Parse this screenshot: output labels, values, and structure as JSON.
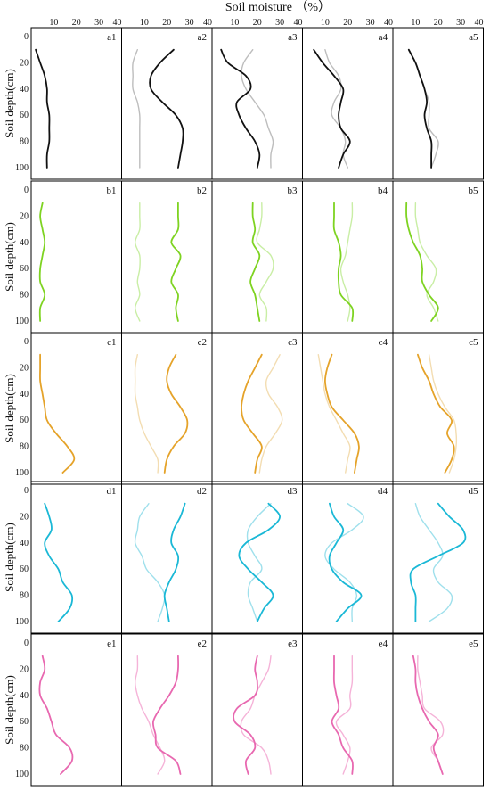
{
  "figure_title": "Soil moisture （%）",
  "y_axis_label": "Soil depth(cm)",
  "chart_data": {
    "type": "line",
    "title": "Soil moisture （%）",
    "ylabel": "Soil depth(cm)",
    "xlim": [
      0,
      40
    ],
    "ylim": [
      0,
      100
    ],
    "y_inverted": true,
    "x_ticks": [
      "10",
      "20",
      "30",
      "40"
    ],
    "y_ticks": [
      "0",
      "20",
      "40",
      "60",
      "80",
      "100"
    ],
    "depths": [
      10,
      20,
      30,
      40,
      50,
      60,
      70,
      80,
      90,
      100
    ],
    "rows": [
      {
        "color_dark": "#111111",
        "color_light": "#bdbdbd",
        "panels": [
          {
            "label": "a1",
            "dark": [
              2,
              4,
              6,
              7,
              7,
              8,
              8,
              8,
              7,
              7
            ],
            "light": null
          },
          {
            "label": "a2",
            "dark": [
              23,
              17,
              13,
              13,
              18,
              24,
              27,
              27,
              26,
              25
            ],
            "light": [
              7,
              5,
              5,
              5,
              7,
              8,
              8,
              8,
              8,
              8
            ]
          },
          {
            "label": "a3",
            "dark": [
              4,
              7,
              15,
              17,
              11,
              12,
              15,
              19,
              21,
              20
            ],
            "light": [
              18,
              14,
              13,
              15,
              19,
              23,
              25,
              27,
              26,
              26
            ]
          },
          {
            "label": "a4",
            "dark": [
              5,
              9,
              14,
              18,
              17,
              16,
              17,
              21,
              18,
              16
            ],
            "light": [
              10,
              12,
              16,
              17,
              14,
              13,
              17,
              19,
              18,
              20
            ]
          },
          {
            "label": "a5",
            "dark": [
              7,
              10,
              12,
              14,
              15,
              14,
              15,
              17,
              17,
              17
            ],
            "light": [
              7,
              10,
              12,
              14,
              16,
              16,
              16,
              20,
              19,
              17
            ]
          }
        ]
      },
      {
        "color_dark": "#7ed321",
        "color_light": "#c9eea5",
        "panels": [
          {
            "label": "b1",
            "dark": [
              5,
              4,
              5,
              6,
              5,
              4,
              4,
              6,
              4,
              4
            ],
            "light": null
          },
          {
            "label": "b2",
            "dark": [
              25,
              25,
              25,
              22,
              26,
              24,
              22,
              25,
              24,
              25
            ],
            "light": [
              8,
              8,
              8,
              6,
              8,
              8,
              7,
              8,
              6,
              8
            ]
          },
          {
            "label": "b3",
            "dark": [
              18,
              18,
              19,
              18,
              21,
              19,
              17,
              19,
              20,
              21
            ],
            "light": [
              22,
              22,
              21,
              20,
              26,
              27,
              24,
              21,
              24,
              24
            ]
          },
          {
            "label": "b4",
            "dark": [
              14,
              14,
              14,
              16,
              17,
              16,
              16,
              17,
              22,
              22
            ],
            "light": [
              22,
              22,
              21,
              20,
              19,
              17,
              18,
              20,
              21,
              20
            ]
          },
          {
            "label": "b5",
            "dark": [
              6,
              6,
              7,
              9,
              12,
              13,
              13,
              16,
              20,
              17
            ],
            "light": [
              10,
              10,
              11,
              12,
              15,
              19,
              18,
              15,
              18,
              20
            ]
          }
        ]
      },
      {
        "color_dark": "#e5a32a",
        "color_light": "#f3ddb2",
        "panels": [
          {
            "label": "c1",
            "dark": [
              4,
              4,
              4,
              5,
              6,
              7,
              11,
              16,
              19,
              14
            ],
            "light": null
          },
          {
            "label": "c2",
            "dark": [
              24,
              21,
              20,
              22,
              26,
              29,
              28,
              23,
              20,
              19
            ],
            "light": [
              7,
              6,
              6,
              6,
              7,
              8,
              10,
              13,
              16,
              16
            ]
          },
          {
            "label": "c3",
            "dark": [
              22,
              19,
              16,
              14,
              13,
              14,
              18,
              22,
              20,
              19
            ],
            "light": [
              30,
              27,
              24,
              25,
              29,
              31,
              28,
              24,
              22,
              21
            ]
          },
          {
            "label": "c4",
            "dark": [
              13,
              11,
              10,
              11,
              13,
              18,
              23,
              25,
              24,
              23
            ],
            "light": [
              7,
              8,
              9,
              10,
              12,
              15,
              18,
              21,
              20,
              19
            ]
          },
          {
            "label": "c5",
            "dark": [
              11,
              13,
              16,
              18,
              21,
              26,
              24,
              27,
              26,
              23
            ],
            "light": [
              16,
              17,
              18,
              20,
              23,
              27,
              28,
              28,
              27,
              25
            ]
          }
        ]
      },
      {
        "color_dark": "#1ab8d6",
        "color_light": "#9fe0ec",
        "panels": [
          {
            "label": "d1",
            "dark": [
              6,
              8,
              9,
              6,
              8,
              12,
              14,
              18,
              17,
              12
            ],
            "light": null
          },
          {
            "label": "d2",
            "dark": [
              28,
              26,
              23,
              22,
              25,
              24,
              21,
              19,
              20,
              21
            ],
            "light": [
              12,
              8,
              7,
              6,
              9,
              11,
              16,
              19,
              18,
              16
            ]
          },
          {
            "label": "d3",
            "dark": [
              25,
              30,
              25,
              15,
              12,
              16,
              22,
              27,
              23,
              20
            ],
            "light": [
              26,
              20,
              16,
              16,
              19,
              22,
              17,
              16,
              18,
              20
            ]
          },
          {
            "label": "d4",
            "dark": [
              12,
              14,
              18,
              15,
              12,
              13,
              18,
              26,
              20,
              15
            ],
            "light": [
              20,
              27,
              22,
              13,
              10,
              14,
              21,
              24,
              22,
              22
            ]
          },
          {
            "label": "d5",
            "dark": [
              20,
              25,
              31,
              31,
              20,
              9,
              8,
              10,
              10,
              10
            ],
            "light": [
              10,
              12,
              16,
              20,
              22,
              18,
              20,
              26,
              24,
              16
            ]
          }
        ]
      },
      {
        "color_dark": "#e868b0",
        "color_light": "#f5b3d8",
        "panels": [
          {
            "label": "e1",
            "dark": [
              5,
              6,
              4,
              4,
              7,
              9,
              11,
              17,
              18,
              13
            ],
            "light": null
          },
          {
            "label": "e2",
            "dark": [
              25,
              25,
              24,
              21,
              17,
              14,
              15,
              16,
              24,
              26
            ],
            "light": [
              7,
              7,
              6,
              7,
              9,
              12,
              14,
              17,
              19,
              16
            ]
          },
          {
            "label": "e3",
            "dark": [
              20,
              19,
              20,
              19,
              11,
              10,
              17,
              19,
              15,
              16
            ],
            "light": [
              26,
              25,
              22,
              19,
              17,
              13,
              14,
              22,
              25,
              26
            ]
          },
          {
            "label": "e4",
            "dark": [
              14,
              14,
              14,
              15,
              16,
              13,
              16,
              18,
              22,
              22
            ],
            "light": [
              22,
              22,
              22,
              21,
              21,
              15,
              18,
              21,
              20,
              18
            ]
          },
          {
            "label": "e5",
            "dark": [
              9,
              10,
              10,
              11,
              13,
              16,
              20,
              18,
              20,
              22
            ],
            "light": [
              11,
              11,
              12,
              13,
              14,
              21,
              22,
              17,
              20,
              22
            ]
          }
        ]
      }
    ]
  }
}
